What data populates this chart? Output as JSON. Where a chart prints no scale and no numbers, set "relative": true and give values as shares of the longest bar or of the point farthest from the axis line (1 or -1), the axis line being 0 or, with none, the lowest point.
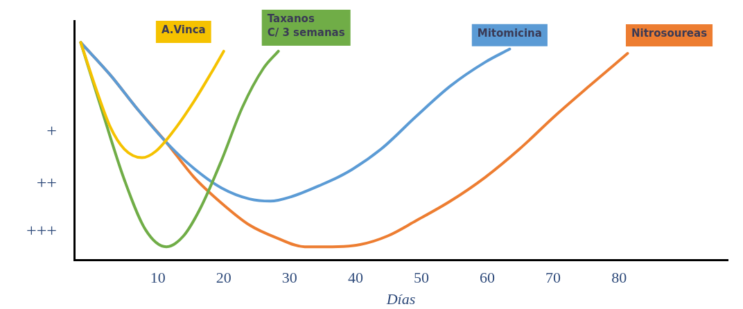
{
  "chart_data": {
    "type": "line",
    "xlabel": "Días",
    "xlim": [
      -2.7,
      96.5
    ],
    "xticks": [
      10,
      20,
      30,
      40,
      50,
      60,
      70,
      80
    ],
    "relative": true,
    "annotations": [
      "+",
      "++",
      "+++"
    ],
    "grid": false,
    "legend": false,
    "marker": "none",
    "line_style": "solid",
    "series": [
      {
        "name": "A.Vinca",
        "color": "#f5c200",
        "x": [
          -1.7,
          0.7,
          2.8,
          4.9,
          7.6,
          9.7,
          12.3,
          15.5,
          18.1,
          20.0
        ],
        "values": [
          1,
          0.78,
          0.61,
          0.51,
          0.47,
          0.5,
          0.59,
          0.73,
          0.86,
          0.96
        ]
      },
      {
        "name": "Taxanos\nC/ 3 semanas",
        "color": "#70ad47",
        "x": [
          -1.7,
          1.8,
          4.9,
          8.1,
          11.3,
          13.9,
          16.5,
          19.7,
          22.8,
          26.0,
          28.3
        ],
        "values": [
          1,
          0.66,
          0.37,
          0.14,
          0.06,
          0.11,
          0.24,
          0.46,
          0.7,
          0.88,
          0.96
        ]
      },
      {
        "name": "Mitomicina",
        "color": "#5b9bd5",
        "x": [
          -1.7,
          2.8,
          7.0,
          11.3,
          15.5,
          19.7,
          23.9,
          27.1,
          30.2,
          34.4,
          38.6,
          43.9,
          49.2,
          54.4,
          59.7,
          63.4
        ],
        "values": [
          1,
          0.85,
          0.69,
          0.54,
          0.42,
          0.33,
          0.28,
          0.27,
          0.29,
          0.34,
          0.4,
          0.51,
          0.66,
          0.8,
          0.91,
          0.97
        ]
      },
      {
        "name": "Nitrosoureas",
        "color": "#ed7d31",
        "x": [
          -1.7,
          2.8,
          7.0,
          11.3,
          15.5,
          19.7,
          23.9,
          28.1,
          32.3,
          36.5,
          40.7,
          44.9,
          49.2,
          54.4,
          59.7,
          64.9,
          70.2,
          75.5,
          81.3
        ],
        "values": [
          1,
          0.85,
          0.69,
          0.54,
          0.38,
          0.26,
          0.16,
          0.1,
          0.06,
          0.06,
          0.07,
          0.11,
          0.18,
          0.27,
          0.38,
          0.51,
          0.66,
          0.8,
          0.95
        ]
      }
    ]
  }
}
